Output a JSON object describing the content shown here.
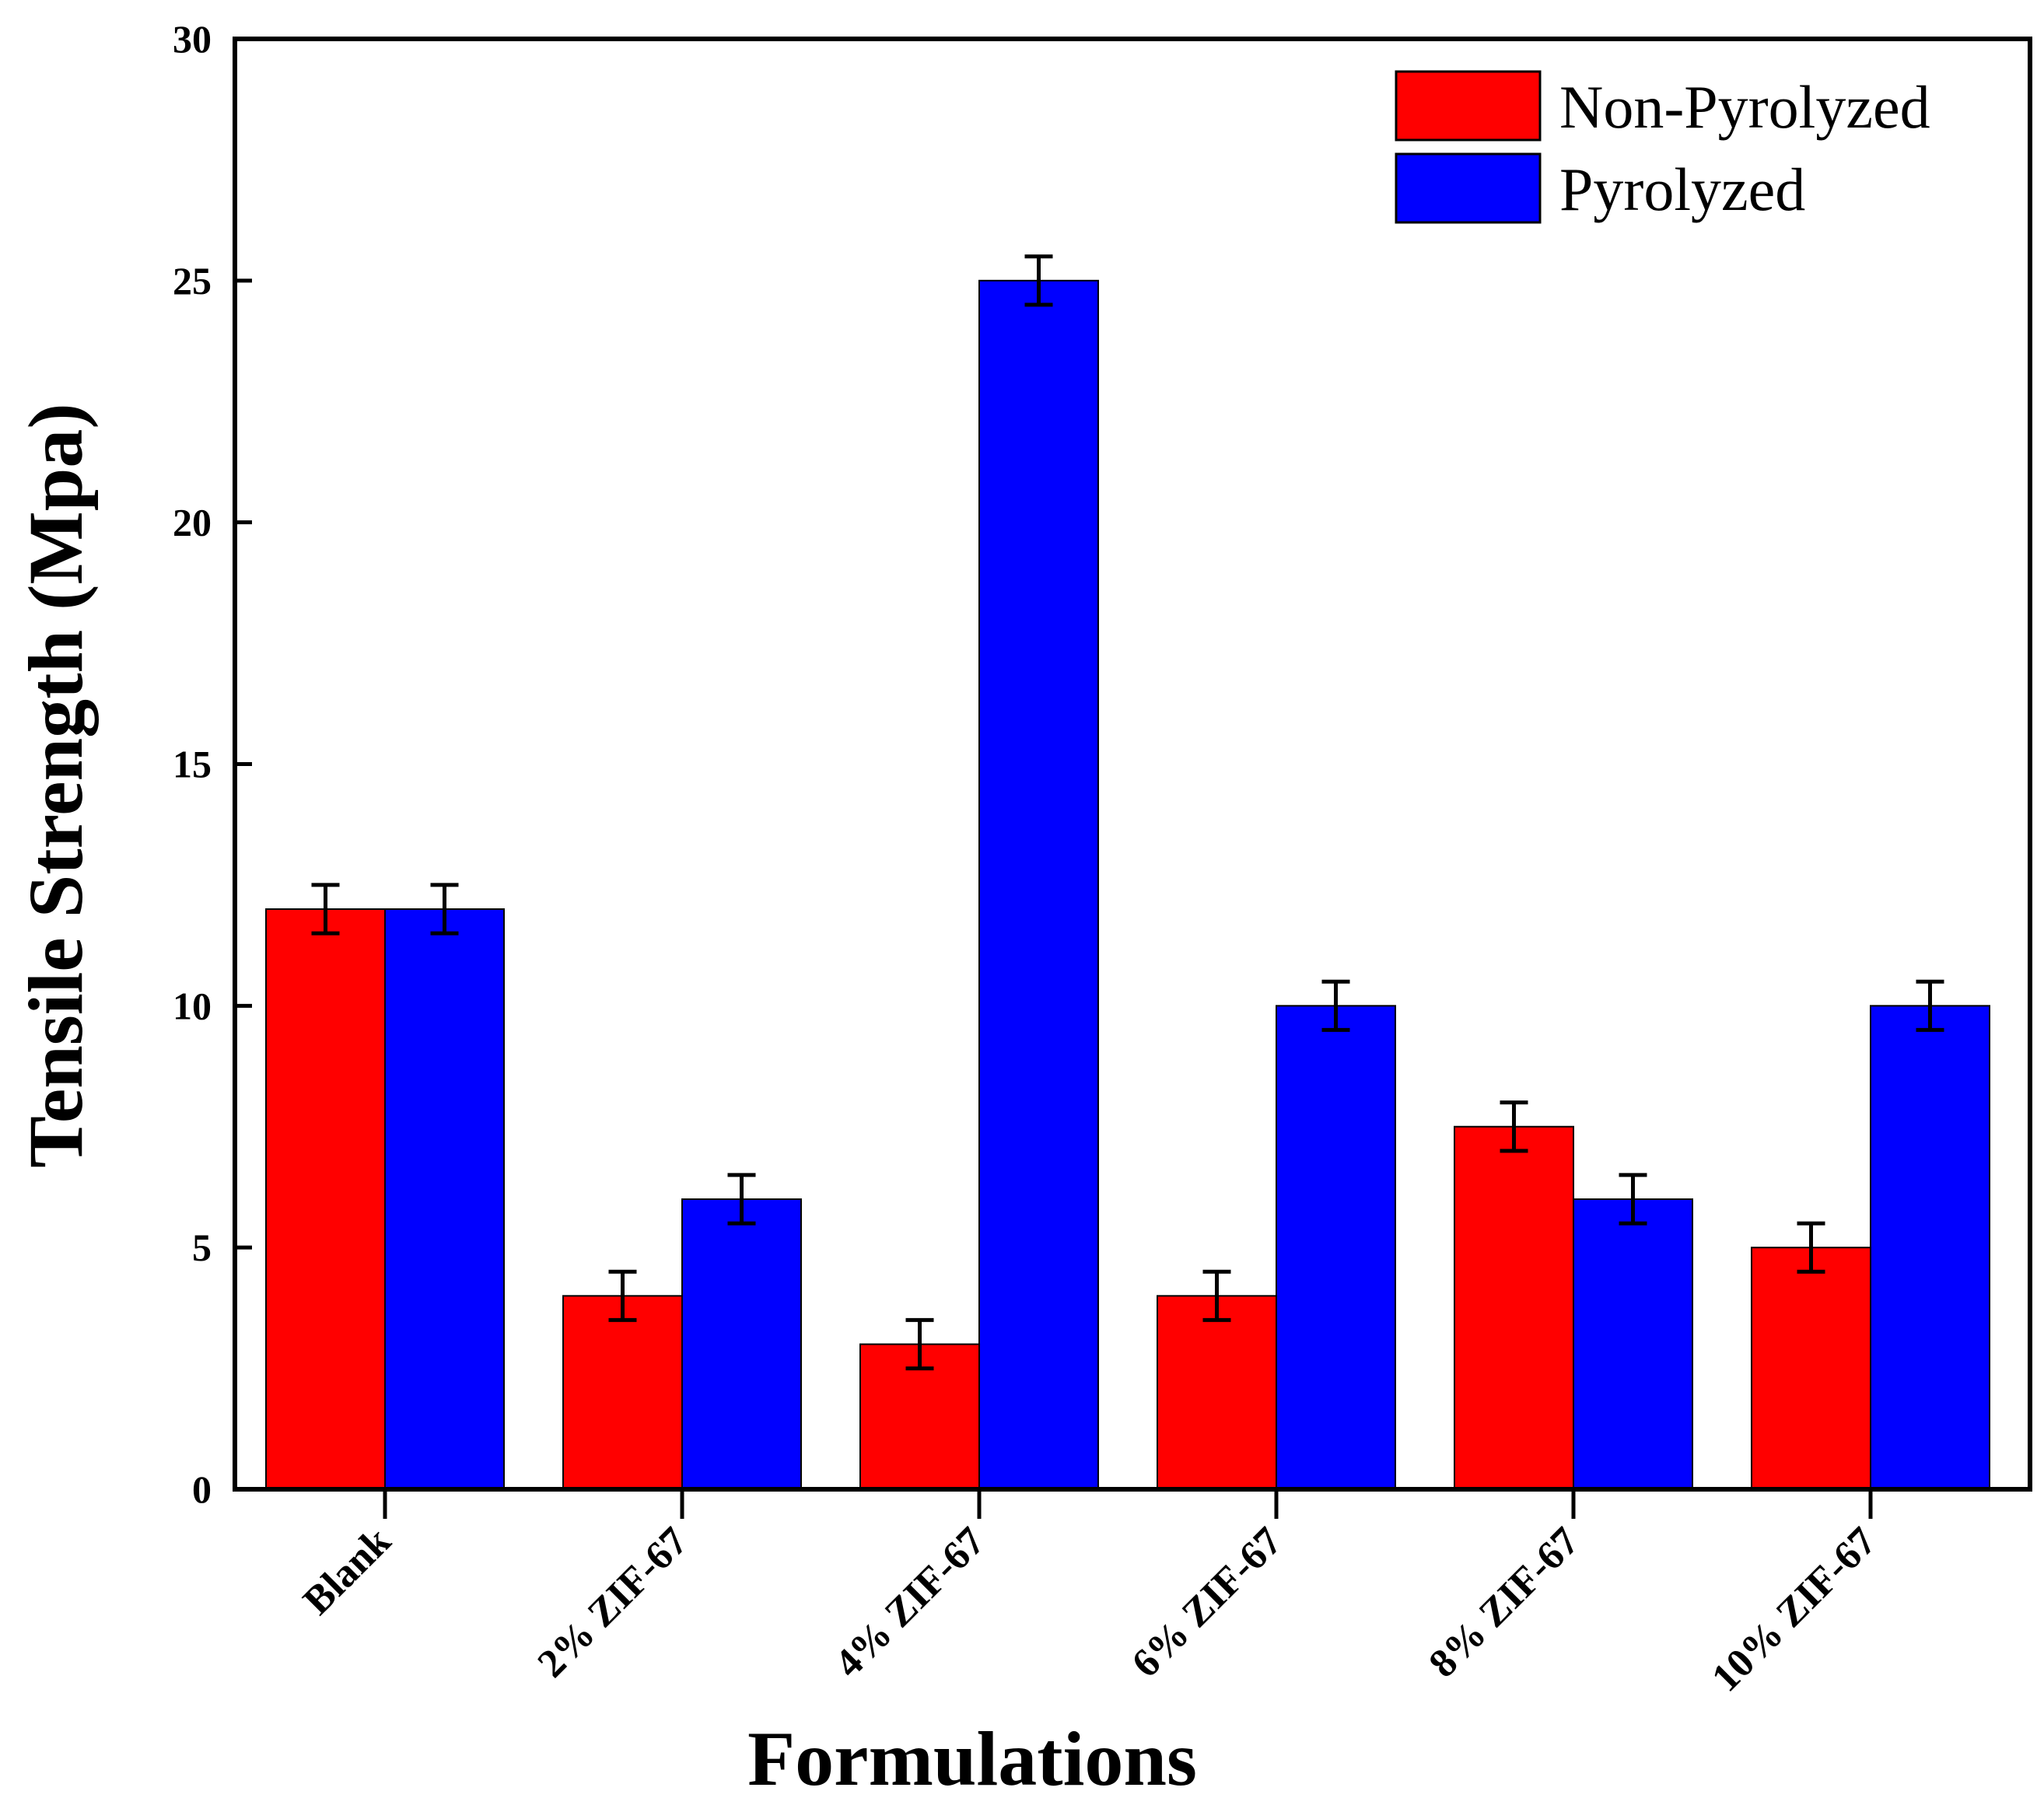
{
  "chart_data": {
    "type": "bar",
    "title": "",
    "xlabel": "Formulations",
    "ylabel": "Tensile Strength (Mpa)",
    "ylim": [
      0,
      30
    ],
    "yticks": [
      0,
      5,
      10,
      15,
      20,
      25,
      30
    ],
    "grid": false,
    "legend_position": "top-right",
    "categories": [
      "Blank",
      "2% ZIF-67",
      "4% ZIF-67",
      "6% ZIF-67",
      "8% ZIF-67",
      "10% ZIF-67"
    ],
    "series": [
      {
        "name": "Non-Pyrolyzed",
        "color": "#ff0000",
        "values": [
          12,
          4,
          3,
          4,
          7.5,
          5
        ],
        "errors": [
          0.5,
          0.5,
          0.5,
          0.5,
          0.5,
          0.5
        ]
      },
      {
        "name": "Pyrolyzed",
        "color": "#0000ff",
        "values": [
          12,
          6,
          25,
          10,
          6,
          10
        ],
        "errors": [
          0.5,
          0.5,
          0.5,
          0.5,
          0.5,
          0.5
        ]
      }
    ]
  }
}
